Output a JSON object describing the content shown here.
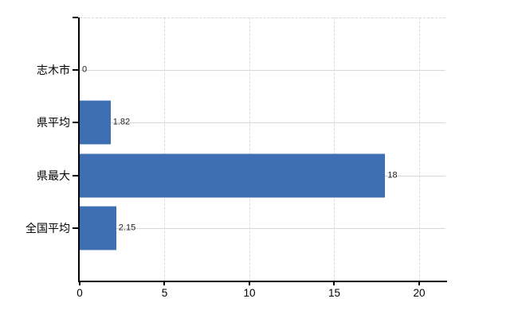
{
  "chart_data": {
    "type": "bar",
    "orientation": "horizontal",
    "title": "",
    "xlabel": "",
    "ylabel": "",
    "categories": [
      "志木市",
      "県平均",
      "県最大",
      "全国平均"
    ],
    "values": [
      0,
      1.82,
      18,
      2.15
    ],
    "value_labels": [
      "0",
      "1.82",
      "18",
      "2.15"
    ],
    "x_ticks": [
      0,
      5,
      10,
      15,
      20
    ],
    "x_tick_labels": [
      "0",
      "5",
      "10",
      "15",
      "20"
    ],
    "xlim": [
      0,
      21.55
    ],
    "grid": "on",
    "legend": "none",
    "bar_color": "#3e6fb2",
    "gridline_color": "#d9d9d9",
    "axis_color": "#000000",
    "label_color": "#222222",
    "background_color": "#ffffff"
  }
}
